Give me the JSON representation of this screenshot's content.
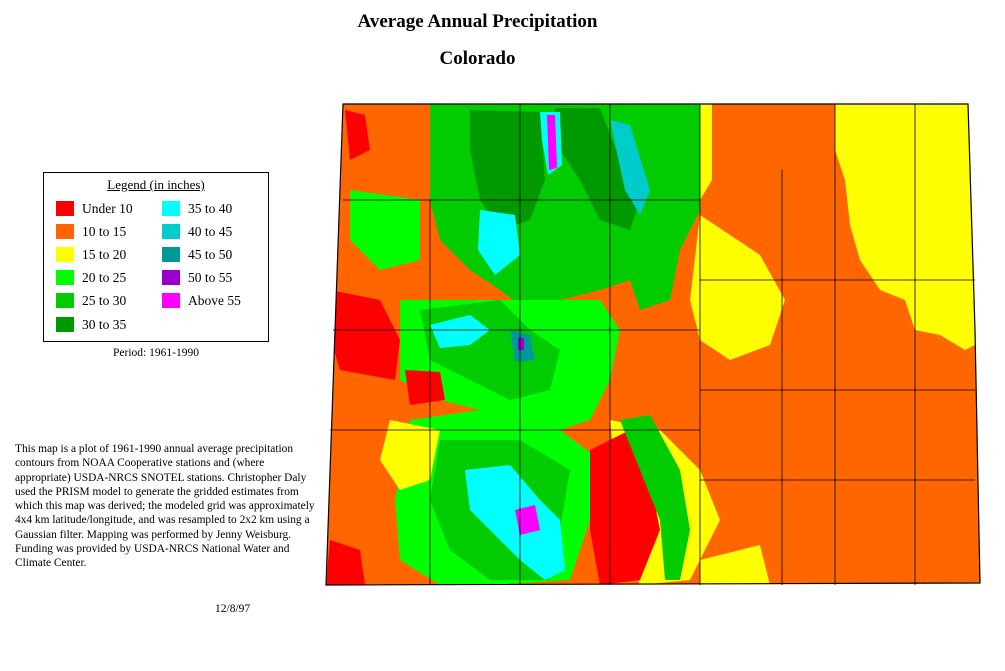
{
  "header": {
    "title": "Average Annual Precipitation",
    "subtitle": "Colorado"
  },
  "legend": {
    "title": "Legend (in inches)",
    "items": [
      {
        "label": "Under 10",
        "color": "#ff0000"
      },
      {
        "label": "10 to 15",
        "color": "#ff6600"
      },
      {
        "label": "15 to 20",
        "color": "#ffff00"
      },
      {
        "label": "20 to 25",
        "color": "#00ff00"
      },
      {
        "label": "25 to 30",
        "color": "#00cc00"
      },
      {
        "label": "30 to 35",
        "color": "#009900"
      },
      {
        "label": "35 to 40",
        "color": "#00ffff"
      },
      {
        "label": "40 to 45",
        "color": "#00cccc"
      },
      {
        "label": "45 to 50",
        "color": "#009999"
      },
      {
        "label": "50 to 55",
        "color": "#9900cc"
      },
      {
        "label": "Above 55",
        "color": "#ff00ff"
      }
    ]
  },
  "period": "Period: 1961-1990",
  "description": "This map is a plot of 1961-1990 annual average precipitation contours from NOAA Cooperative stations and (where appropriate) USDA-NRCS SNOTEL stations. Christopher Daly used the PRISM model to generate the gridded estimates from which this map was derived; the modeled grid was approximately 4x4 km latitude/longitude, and was resampled to 2x2 km using a Gaussian filter. Mapping was performed by Jenny Weisburg. Funding was provided by USDA-NRCS National Water and Climate Center.",
  "date": "12/8/97"
}
